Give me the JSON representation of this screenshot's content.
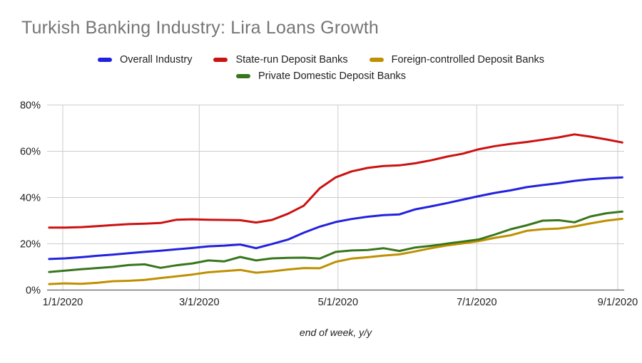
{
  "title": "Turkish Banking Industry: Lira Loans Growth",
  "legend_rows": [
    [
      {
        "label": "Overall Industry",
        "color": "#2222dd"
      },
      {
        "label": "State-run Deposit Banks",
        "color": "#cc1111"
      },
      {
        "label": "Foreign-controlled Deposit Banks",
        "color": "#bf9000"
      }
    ],
    [
      {
        "label": "Private Domestic Deposit Banks",
        "color": "#38761d"
      }
    ]
  ],
  "chart_data": {
    "type": "line",
    "title": "Turkish Banking Industry: Lira Loans Growth",
    "xlabel": "end of week, y/y",
    "ylabel": "",
    "ylim": [
      0,
      80
    ],
    "grid": true,
    "legend_position": "top",
    "y_ticks": [
      {
        "label": "0%",
        "value": 0
      },
      {
        "label": "20%",
        "value": 20
      },
      {
        "label": "40%",
        "value": 40
      },
      {
        "label": "60%",
        "value": 60
      },
      {
        "label": "80%",
        "value": 80
      }
    ],
    "x_ticks": [
      {
        "label": "1/1/2020",
        "day": 7
      },
      {
        "label": "3/1/2020",
        "day": 67
      },
      {
        "label": "5/1/2020",
        "day": 128
      },
      {
        "label": "7/1/2020",
        "day": 189
      },
      {
        "label": "9/1/2020",
        "day": 251
      }
    ],
    "x_axis_note": "weekly points, day offsets measured from 12/25/2019 at plot left edge",
    "week_days": [
      1,
      8,
      15,
      22,
      29,
      36,
      43,
      50,
      57,
      64,
      71,
      78,
      85,
      92,
      99,
      106,
      113,
      120,
      127,
      134,
      141,
      148,
      155,
      162,
      169,
      176,
      183,
      190,
      197,
      204,
      211,
      218,
      225,
      232,
      239,
      246,
      253
    ],
    "week_dates": [
      "12/26/2019",
      "1/2/2020",
      "1/9/2020",
      "1/16/2020",
      "1/23/2020",
      "1/30/2020",
      "2/6/2020",
      "2/13/2020",
      "2/20/2020",
      "2/27/2020",
      "3/5/2020",
      "3/12/2020",
      "3/19/2020",
      "3/26/2020",
      "4/2/2020",
      "4/9/2020",
      "4/16/2020",
      "4/23/2020",
      "4/30/2020",
      "5/7/2020",
      "5/14/2020",
      "5/21/2020",
      "5/28/2020",
      "6/4/2020",
      "6/11/2020",
      "6/18/2020",
      "6/25/2020",
      "7/2/2020",
      "7/9/2020",
      "7/16/2020",
      "7/23/2020",
      "7/30/2020",
      "8/6/2020",
      "8/13/2020",
      "8/20/2020",
      "8/27/2020",
      "9/3/2020"
    ],
    "series": [
      {
        "name": "Overall Industry",
        "color": "#2222dd",
        "values": [
          13.4,
          13.7,
          14.2,
          14.8,
          15.3,
          15.9,
          16.5,
          17.0,
          17.6,
          18.2,
          18.9,
          19.2,
          19.7,
          18.1,
          19.9,
          21.8,
          24.8,
          27.4,
          29.4,
          30.7,
          31.7,
          32.4,
          32.7,
          34.9,
          36.2,
          37.6,
          39.1,
          40.6,
          42.0,
          43.1,
          44.5,
          45.4,
          46.2,
          47.2,
          47.9,
          48.4,
          48.7
        ]
      },
      {
        "name": "State-run Deposit Banks",
        "color": "#cc1111",
        "values": [
          27.0,
          27.0,
          27.2,
          27.6,
          28.1,
          28.5,
          28.7,
          29.0,
          30.4,
          30.6,
          30.4,
          30.3,
          30.2,
          29.2,
          30.3,
          33.0,
          36.5,
          44.0,
          48.7,
          51.3,
          52.8,
          53.6,
          53.9,
          54.8,
          56.1,
          57.7,
          59.0,
          60.9,
          62.2,
          63.2,
          64.0,
          65.0,
          66.0,
          67.3,
          66.3,
          65.1,
          63.8
        ]
      },
      {
        "name": "Foreign-controlled Deposit Banks",
        "color": "#bf9000",
        "values": [
          2.6,
          2.9,
          2.7,
          3.1,
          3.8,
          4.0,
          4.4,
          5.2,
          5.9,
          6.7,
          7.7,
          8.2,
          8.7,
          7.5,
          8.1,
          8.9,
          9.5,
          9.4,
          12.2,
          13.6,
          14.2,
          14.9,
          15.4,
          16.7,
          18.1,
          19.3,
          20.2,
          21.2,
          22.6,
          23.7,
          25.6,
          26.3,
          26.6,
          27.5,
          28.8,
          30.0,
          30.8
        ]
      },
      {
        "name": "Private Domestic Deposit Banks",
        "color": "#38761d",
        "values": [
          7.8,
          8.4,
          9.0,
          9.5,
          10.0,
          10.8,
          11.1,
          9.6,
          10.7,
          11.5,
          12.8,
          12.4,
          14.3,
          12.8,
          13.7,
          13.9,
          14.0,
          13.6,
          16.5,
          17.1,
          17.3,
          18.1,
          16.9,
          18.4,
          19.1,
          20.1,
          21.0,
          21.9,
          24.0,
          26.3,
          28.0,
          30.0,
          30.2,
          29.3,
          31.8,
          33.2,
          33.9
        ]
      }
    ],
    "draw_order": [
      2,
      3,
      0,
      1
    ]
  },
  "style": {
    "title_color": "#757575",
    "label_color": "#212121",
    "grid_color": "#cccccc",
    "axis_color": "#616161",
    "background": "#ffffff"
  }
}
